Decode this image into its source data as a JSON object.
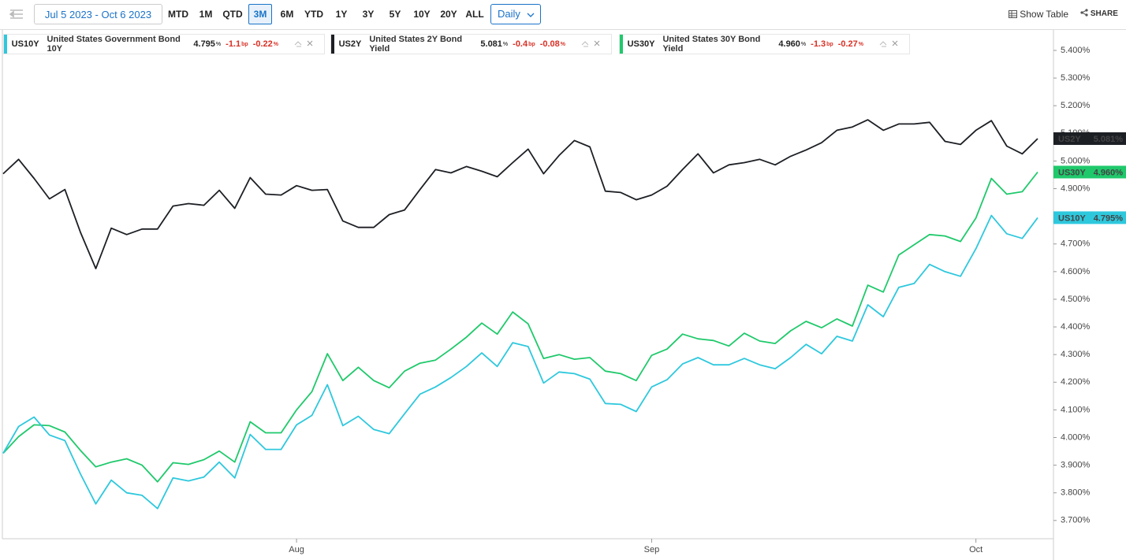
{
  "toolbar": {
    "date_range": "Jul 5 2023 - Oct 6 2023",
    "ranges": [
      "MTD",
      "1M",
      "QTD",
      "3M",
      "6M",
      "YTD",
      "1Y",
      "3Y",
      "5Y",
      "10Y",
      "20Y",
      "ALL"
    ],
    "selected_range": 3,
    "interval": "Daily",
    "show_table": "Show Table",
    "share": "SHARE"
  },
  "chart_data": {
    "type": "line",
    "categories": [
      null,
      null,
      null,
      null,
      null,
      null,
      null,
      null,
      null,
      null,
      null,
      null,
      null,
      null,
      null,
      null,
      null,
      null,
      null,
      "Aug",
      null,
      null,
      null,
      null,
      null,
      null,
      null,
      null,
      null,
      null,
      null,
      null,
      null,
      null,
      null,
      null,
      null,
      null,
      null,
      null,
      null,
      null,
      "Sep",
      null,
      null,
      null,
      null,
      null,
      null,
      null,
      null,
      null,
      null,
      null,
      null,
      null,
      null,
      null,
      null,
      null,
      null,
      null,
      null,
      "Oct",
      null,
      null,
      null,
      null
    ],
    "ylim": [
      3.634,
      5.474
    ],
    "yticks": [
      {
        "value": 3.7,
        "label": "3.700%"
      },
      {
        "value": 3.8,
        "label": "3.800%"
      },
      {
        "value": 3.9,
        "label": "3.900%"
      },
      {
        "value": 4.0,
        "label": "4.000%"
      },
      {
        "value": 4.1,
        "label": "4.100%"
      },
      {
        "value": 4.2,
        "label": "4.200%"
      },
      {
        "value": 4.3,
        "label": "4.300%"
      },
      {
        "value": 4.4,
        "label": "4.400%"
      },
      {
        "value": 4.5,
        "label": "4.500%"
      },
      {
        "value": 4.6,
        "label": "4.600%"
      },
      {
        "value": 4.7,
        "label": "4.700%"
      },
      {
        "value": 4.8,
        "label": "4.800%"
      },
      {
        "value": 4.9,
        "label": "4.900%"
      },
      {
        "value": 5.0,
        "label": "5.000%"
      },
      {
        "value": 5.1,
        "label": "5.100%"
      },
      {
        "value": 5.2,
        "label": "5.200%"
      },
      {
        "value": 5.3,
        "label": "5.300%"
      },
      {
        "value": 5.4,
        "label": "5.400%"
      }
    ],
    "grid": false,
    "series": [
      {
        "name": "US10Y",
        "full_name": "United States Government Bond 10Y",
        "color": "#2ec8dd",
        "last": "4.795",
        "last_unit": "%",
        "change": "-1.1",
        "change_unit": "bp",
        "change_pct": "-0.22",
        "change_pct_unit": "%",
        "badge": "4.795%",
        "values": [
          3.943,
          4.04,
          4.074,
          4.009,
          3.989,
          3.869,
          3.76,
          3.846,
          3.8,
          3.791,
          3.743,
          3.854,
          3.843,
          3.857,
          3.911,
          3.854,
          4.011,
          3.957,
          3.957,
          4.046,
          4.08,
          4.191,
          4.043,
          4.077,
          4.029,
          4.014,
          4.086,
          4.157,
          4.183,
          4.217,
          4.257,
          4.306,
          4.257,
          4.343,
          4.329,
          4.197,
          4.237,
          4.231,
          4.211,
          4.123,
          4.12,
          4.094,
          4.183,
          4.209,
          4.266,
          4.289,
          4.263,
          4.263,
          4.286,
          4.263,
          4.249,
          4.289,
          4.337,
          4.303,
          4.366,
          4.349,
          4.48,
          4.437,
          4.543,
          4.557,
          4.626,
          4.6,
          4.583,
          4.683,
          4.803,
          4.737,
          4.72,
          4.795
        ]
      },
      {
        "name": "US2Y",
        "full_name": "United States 2Y Bond Yield",
        "color": "#1c1f24",
        "last": "5.081",
        "last_unit": "%",
        "change": "-0.4",
        "change_unit": "bp",
        "change_pct": "-0.08",
        "change_pct_unit": "%",
        "badge": "5.081%",
        "values": [
          4.954,
          5.006,
          4.937,
          4.863,
          4.897,
          4.743,
          4.611,
          4.757,
          4.734,
          4.754,
          4.754,
          4.837,
          4.846,
          4.84,
          4.894,
          4.829,
          4.94,
          4.88,
          4.877,
          4.911,
          4.894,
          4.897,
          4.783,
          4.76,
          4.76,
          4.806,
          4.823,
          4.897,
          4.969,
          4.957,
          4.98,
          4.963,
          4.943,
          4.994,
          5.043,
          4.954,
          5.02,
          5.074,
          5.051,
          4.891,
          4.886,
          4.86,
          4.877,
          4.909,
          4.969,
          5.026,
          4.957,
          4.986,
          4.994,
          5.006,
          4.986,
          5.017,
          5.04,
          5.066,
          5.111,
          5.123,
          5.149,
          5.111,
          5.134,
          5.134,
          5.14,
          5.071,
          5.06,
          5.111,
          5.146,
          5.054,
          5.026,
          5.081
        ]
      },
      {
        "name": "US30Y",
        "full_name": "United States 30Y Bond Yield",
        "color": "#1fc96b",
        "last": "4.960",
        "last_unit": "%",
        "change": "-1.3",
        "change_unit": "bp",
        "change_pct": "-0.27",
        "change_pct_unit": "%",
        "badge": "4.960%",
        "values": [
          3.943,
          4.003,
          4.046,
          4.043,
          4.02,
          3.954,
          3.894,
          3.911,
          3.923,
          3.9,
          3.84,
          3.909,
          3.903,
          3.92,
          3.951,
          3.911,
          4.057,
          4.017,
          4.017,
          4.1,
          4.166,
          4.303,
          4.206,
          4.254,
          4.206,
          4.18,
          4.24,
          4.269,
          4.28,
          4.32,
          4.363,
          4.414,
          4.374,
          4.454,
          4.411,
          4.286,
          4.3,
          4.283,
          4.289,
          4.24,
          4.231,
          4.206,
          4.297,
          4.32,
          4.374,
          4.357,
          4.351,
          4.331,
          4.377,
          4.349,
          4.34,
          4.386,
          4.42,
          4.397,
          4.429,
          4.403,
          4.551,
          4.526,
          4.66,
          4.697,
          4.734,
          4.729,
          4.709,
          4.794,
          4.937,
          4.88,
          4.889,
          4.96
        ]
      }
    ]
  }
}
